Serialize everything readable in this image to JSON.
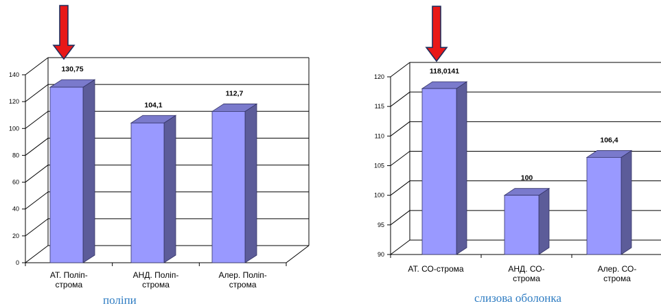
{
  "chart_data": [
    {
      "type": "bar",
      "categories": [
        "АТ. Поліп-строма",
        "АНД. Поліп-строма",
        "Алер. Поліп-строма"
      ],
      "category_lines": [
        [
          "АТ. Поліп-",
          "строма"
        ],
        [
          "АНД. Поліп-",
          "строма"
        ],
        [
          "Алер. Поліп-",
          "строма"
        ]
      ],
      "values": [
        130.75,
        104.1,
        112.7
      ],
      "data_labels": [
        "130,75",
        "104,1",
        "112,7"
      ],
      "ylim": [
        0,
        140
      ],
      "yticks": [
        "0",
        "20",
        "40",
        "60",
        "80",
        "100",
        "120",
        "140"
      ],
      "grid": true,
      "highlight_index": 0,
      "caption": "поліпи",
      "colors": {
        "bar_front": "#9999FF",
        "bar_side": "#5C5C99",
        "bar_top": "#7A7ACC",
        "arrow": "#E81818",
        "arrow_edge": "#1F2D5C"
      }
    },
    {
      "type": "bar",
      "categories": [
        "АТ. СО-строма",
        "АНД. СО-строма",
        "Алер. СО-строма"
      ],
      "category_lines": [
        [
          "АТ. СО-строма"
        ],
        [
          "АНД. СО-",
          "строма"
        ],
        [
          "Алер. СО-",
          "строма"
        ]
      ],
      "values": [
        118.0141,
        100,
        106.4
      ],
      "data_labels": [
        "118,0141",
        "100",
        "106,4"
      ],
      "ylim": [
        90,
        120
      ],
      "yticks": [
        "90",
        "95",
        "100",
        "105",
        "110",
        "115",
        "120"
      ],
      "grid": true,
      "highlight_index": 0,
      "caption": "слизова оболонка",
      "colors": {
        "bar_front": "#9999FF",
        "bar_side": "#5C5C99",
        "bar_top": "#7A7ACC",
        "arrow": "#E81818",
        "arrow_edge": "#1F2D5C"
      }
    }
  ]
}
